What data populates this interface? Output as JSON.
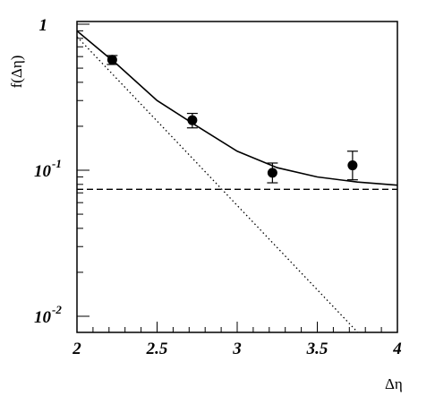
{
  "chart_data": {
    "type": "scatter",
    "title": "",
    "xlabel": "Δη",
    "ylabel": "f(Δη)",
    "xlim": [
      2,
      4
    ],
    "ylim": [
      0.008,
      1.1
    ],
    "log_y": true,
    "grid": false,
    "x_ticks": [
      {
        "value": 2,
        "label": "2"
      },
      {
        "value": 2.5,
        "label": "2.5"
      },
      {
        "value": 3,
        "label": "3"
      },
      {
        "value": 3.5,
        "label": "3.5"
      },
      {
        "value": 4,
        "label": "4"
      }
    ],
    "y_ticks": [
      {
        "value": 1,
        "base": "1",
        "exp": ""
      },
      {
        "value": 0.1,
        "base": "10",
        "exp": "-1"
      },
      {
        "value": 0.01,
        "base": "10",
        "exp": "-2"
      }
    ],
    "series": [
      {
        "kind": "points",
        "marker": "filled-circle",
        "x": [
          2.22,
          2.72,
          3.22,
          3.72
        ],
        "y": [
          0.57,
          0.22,
          0.096,
          0.108
        ],
        "y_err_low": [
          0.53,
          0.195,
          0.082,
          0.086
        ],
        "y_err_high": [
          0.61,
          0.245,
          0.112,
          0.135
        ]
      },
      {
        "kind": "line",
        "style": "solid",
        "x": [
          2.0,
          2.25,
          2.5,
          2.75,
          3.0,
          3.25,
          3.5,
          3.75,
          4.0
        ],
        "y": [
          0.9,
          0.53,
          0.3,
          0.2,
          0.135,
          0.104,
          0.09,
          0.083,
          0.079
        ]
      },
      {
        "kind": "line",
        "style": "dotted",
        "x": [
          2.0,
          3.75
        ],
        "y": [
          0.82,
          0.0078
        ]
      },
      {
        "kind": "line",
        "style": "dashed",
        "x": [
          2.0,
          4.0
        ],
        "y": [
          0.074,
          0.074
        ]
      }
    ]
  }
}
